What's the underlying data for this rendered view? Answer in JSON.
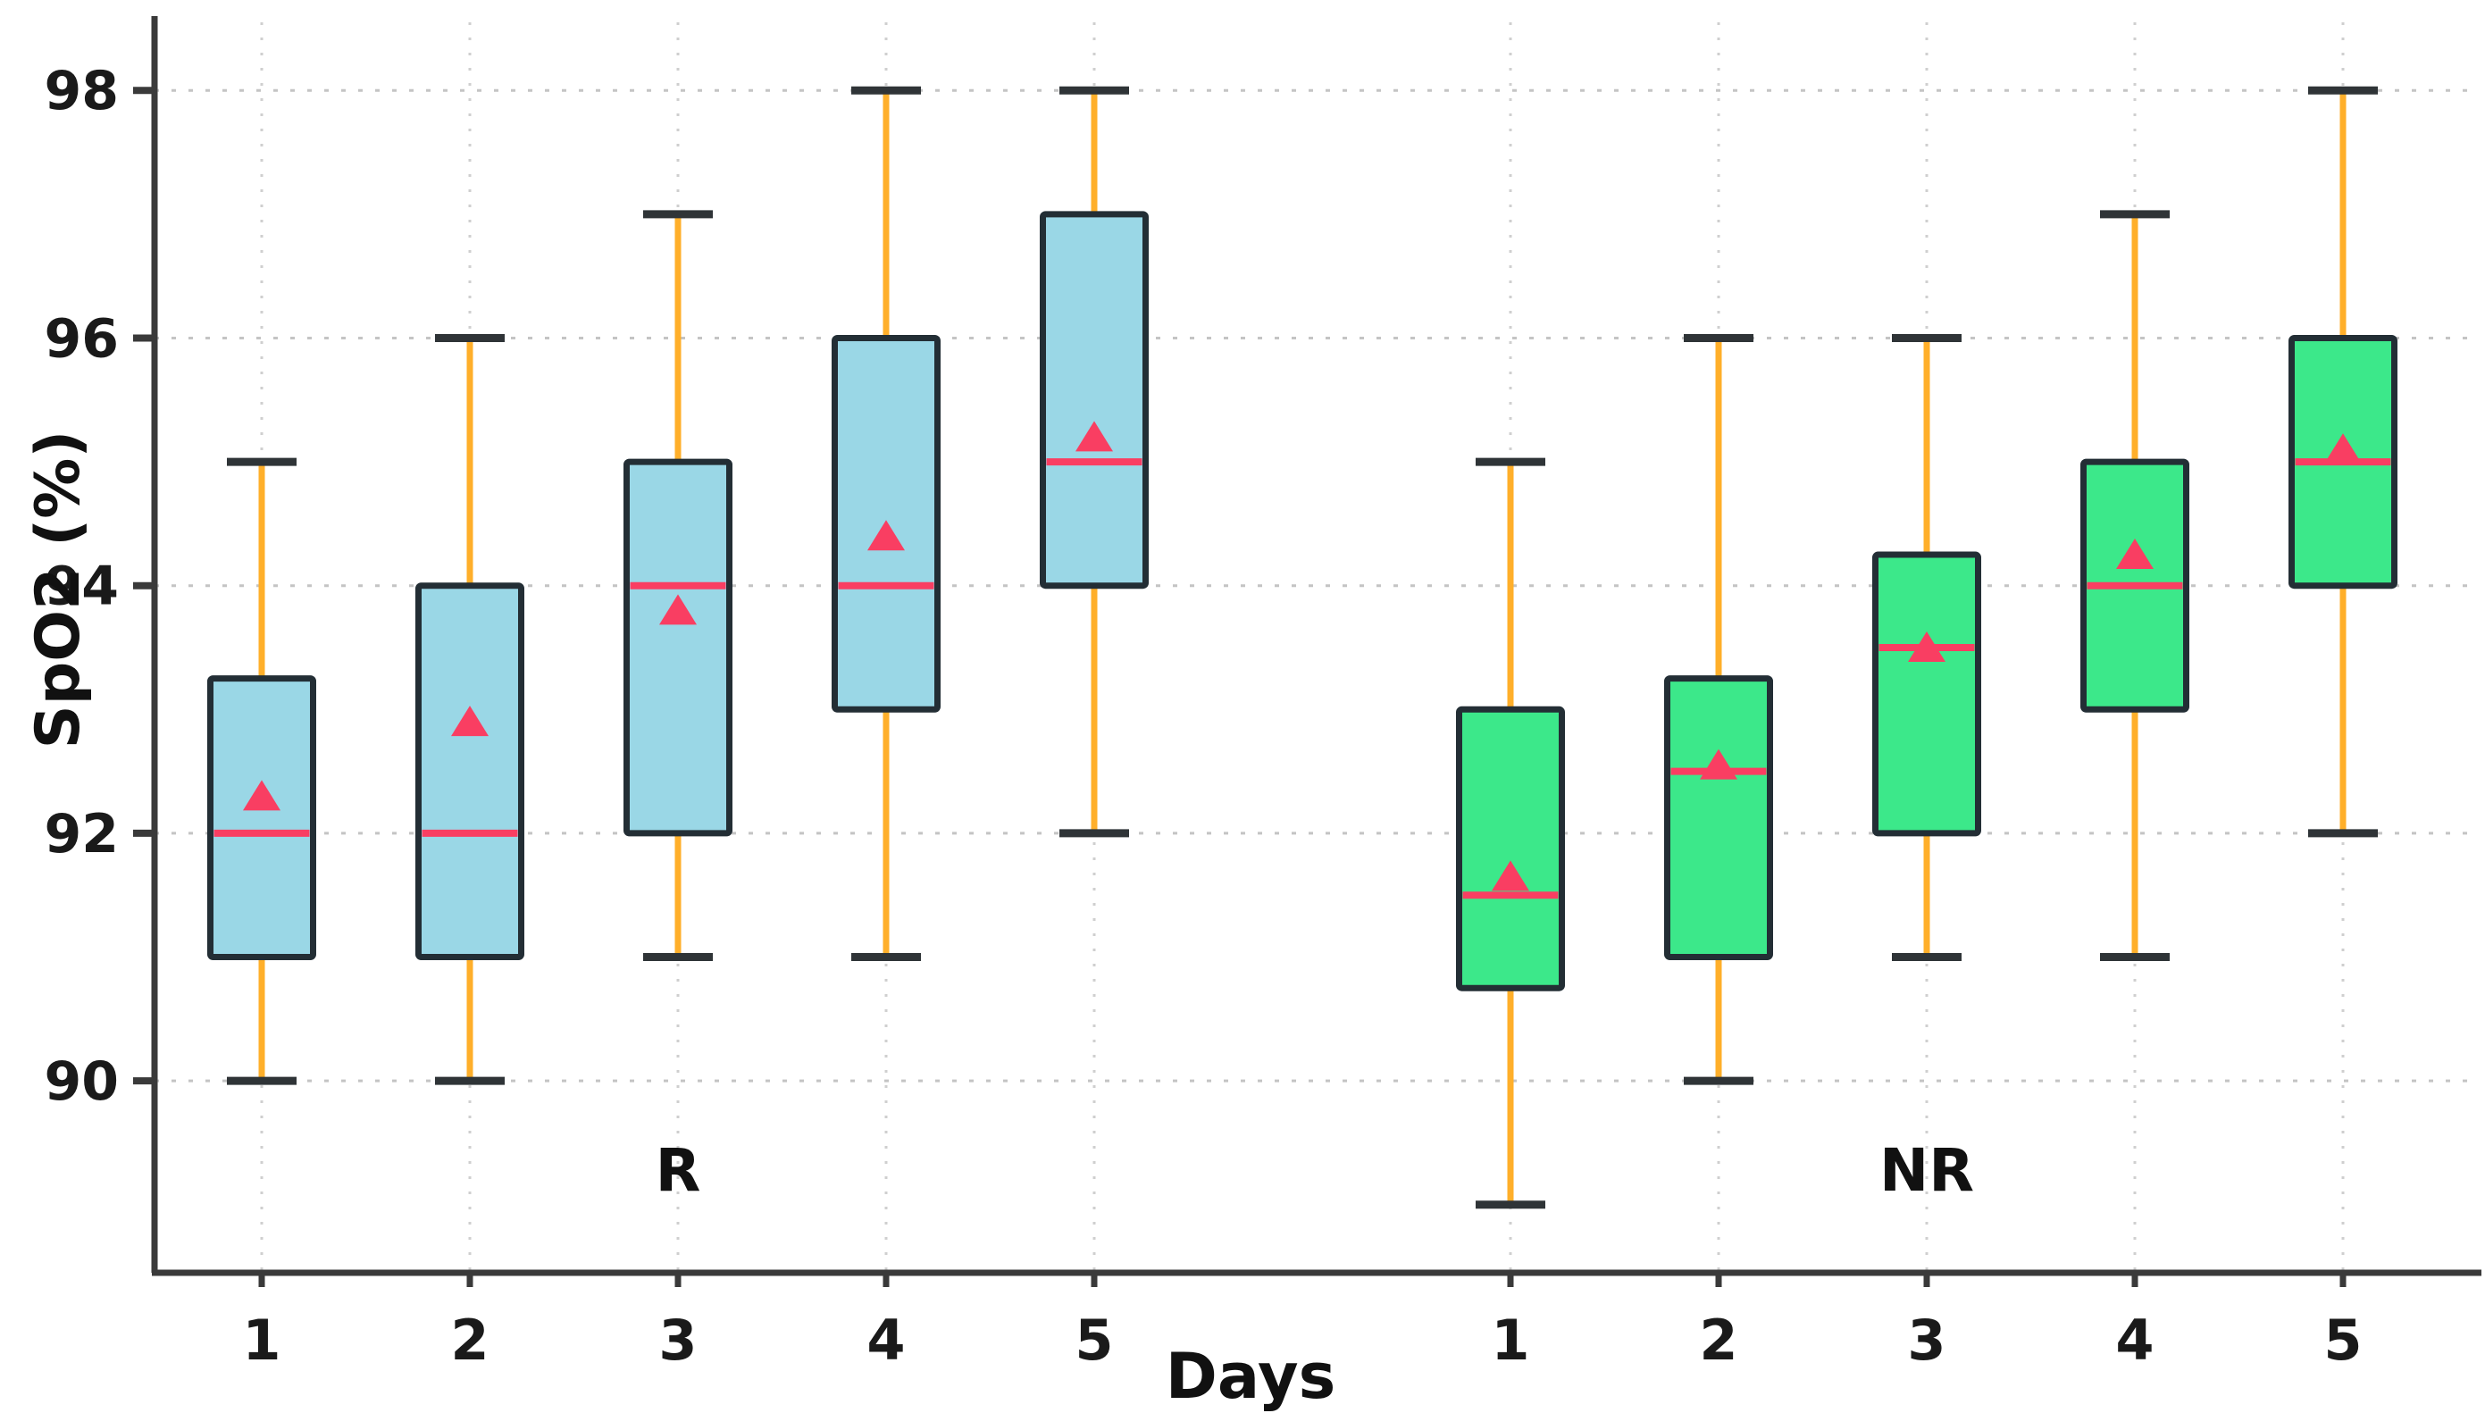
{
  "chart_data": {
    "type": "box",
    "title": "",
    "xlabel": "Days",
    "ylabel": "SpO2 (%)",
    "ylim": [
      88.45,
      98.55
    ],
    "y_ticks": [
      90,
      92,
      94,
      96,
      98
    ],
    "grid": "dotted horizontal and vertical gridlines",
    "legend_position": "none",
    "mean_marker_shape": "triangle-up",
    "groups": [
      {
        "name": "R",
        "box_color": "#9AD7E6",
        "days": [
          "1",
          "2",
          "3",
          "4",
          "5"
        ],
        "boxes": [
          {
            "day": "1",
            "whisker_low": 90,
            "q1": 91,
            "median": 92,
            "q3": 93.25,
            "whisker_high": 95,
            "mean": 92.3
          },
          {
            "day": "2",
            "whisker_low": 90,
            "q1": 91,
            "median": 92,
            "q3": 94,
            "whisker_high": 96,
            "mean": 92.9
          },
          {
            "day": "3",
            "whisker_low": 91,
            "q1": 92,
            "median": 94,
            "q3": 95,
            "whisker_high": 97,
            "mean": 93.8
          },
          {
            "day": "4",
            "whisker_low": 91,
            "q1": 93,
            "median": 94,
            "q3": 96,
            "whisker_high": 98,
            "mean": 94.4
          },
          {
            "day": "5",
            "whisker_low": 92,
            "q1": 94,
            "median": 95,
            "q3": 97,
            "whisker_high": 98,
            "mean": 95.2
          }
        ]
      },
      {
        "name": "NR",
        "box_color": "#3CE88A",
        "days": [
          "1",
          "2",
          "3",
          "4",
          "5"
        ],
        "boxes": [
          {
            "day": "1",
            "whisker_low": 89,
            "q1": 90.75,
            "median": 91.5,
            "q3": 93,
            "whisker_high": 95,
            "mean": 91.65
          },
          {
            "day": "2",
            "whisker_low": 90,
            "q1": 91,
            "median": 92.5,
            "q3": 93.25,
            "whisker_high": 96,
            "mean": 92.55
          },
          {
            "day": "3",
            "whisker_low": 91,
            "q1": 92,
            "median": 93.5,
            "q3": 94.25,
            "whisker_high": 96,
            "mean": 93.5
          },
          {
            "day": "4",
            "whisker_low": 91,
            "q1": 93,
            "median": 94,
            "q3": 95,
            "whisker_high": 97,
            "mean": 94.25
          },
          {
            "day": "5",
            "whisker_low": 92,
            "q1": 94,
            "median": 95,
            "q3": 96,
            "whisker_high": 98,
            "mean": 95.1
          }
        ]
      }
    ],
    "colors": {
      "whisker": "#FFAF2A",
      "cap": "#2F3437",
      "median": "#F93E62",
      "mean_marker": "#F93E62",
      "box_edge": "#232E35",
      "grid_h": "#C4C4C4",
      "grid_v": "#CFCFCF",
      "axis": "#3A3A3A",
      "text": "#1A1A1A"
    }
  }
}
